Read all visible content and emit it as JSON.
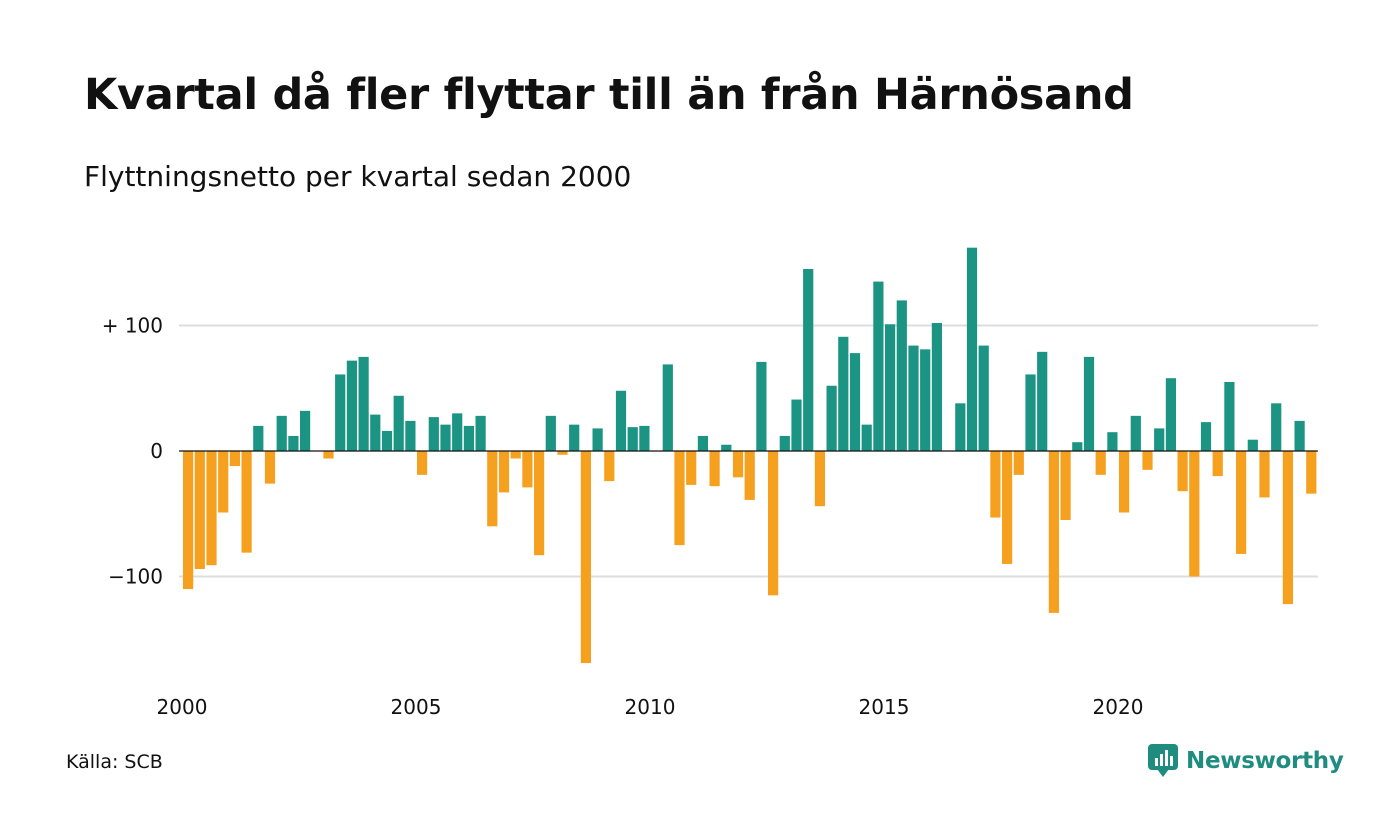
{
  "title": "Kvartal då fler flyttar till än från Härnösand",
  "subtitle": "Flyttningsnetto per kvartal sedan 2000",
  "source": "Källa: SCB",
  "brand": "Newsworthy",
  "brand_icon": "newsworthy-logo-icon",
  "colors": {
    "positive": "#1b9484",
    "negative": "#f5a01f",
    "grid": "#dddddd",
    "brand": "#1e8c7e"
  },
  "chart_data": {
    "type": "bar",
    "title": "Kvartal då fler flyttar till än från Härnösand",
    "subtitle": "Flyttningsnetto per kvartal sedan 2000",
    "start": "2000Q1",
    "values": [
      -110,
      -94,
      -91,
      -49,
      -12,
      -81,
      20,
      -26,
      28,
      12,
      32,
      0,
      -6,
      61,
      72,
      75,
      29,
      16,
      44,
      24,
      -19,
      27,
      21,
      30,
      20,
      28,
      -60,
      -33,
      -6,
      -29,
      -83,
      28,
      -3,
      21,
      -169,
      18,
      -24,
      48,
      19,
      20,
      0,
      69,
      -75,
      -27,
      12,
      -28,
      5,
      -21,
      -39,
      71,
      -115,
      12,
      41,
      145,
      -44,
      52,
      91,
      78,
      21,
      135,
      101,
      120,
      84,
      81,
      102,
      0,
      38,
      162,
      84,
      -53,
      -90,
      -19,
      61,
      79,
      -129,
      -55,
      7,
      75,
      -19,
      15,
      -49,
      28,
      -15,
      18,
      58,
      -32,
      -100,
      23,
      -20,
      55,
      -82,
      9,
      -37,
      38,
      -122,
      24,
      -34
    ],
    "yticks": [
      {
        "value": 100,
        "label": "+ 100"
      },
      {
        "value": 0,
        "label": "0"
      },
      {
        "value": -100,
        "label": "−100"
      }
    ],
    "xticks": [
      "2000",
      "2005",
      "2010",
      "2015",
      "2020"
    ],
    "grid": true,
    "legend": "none"
  }
}
